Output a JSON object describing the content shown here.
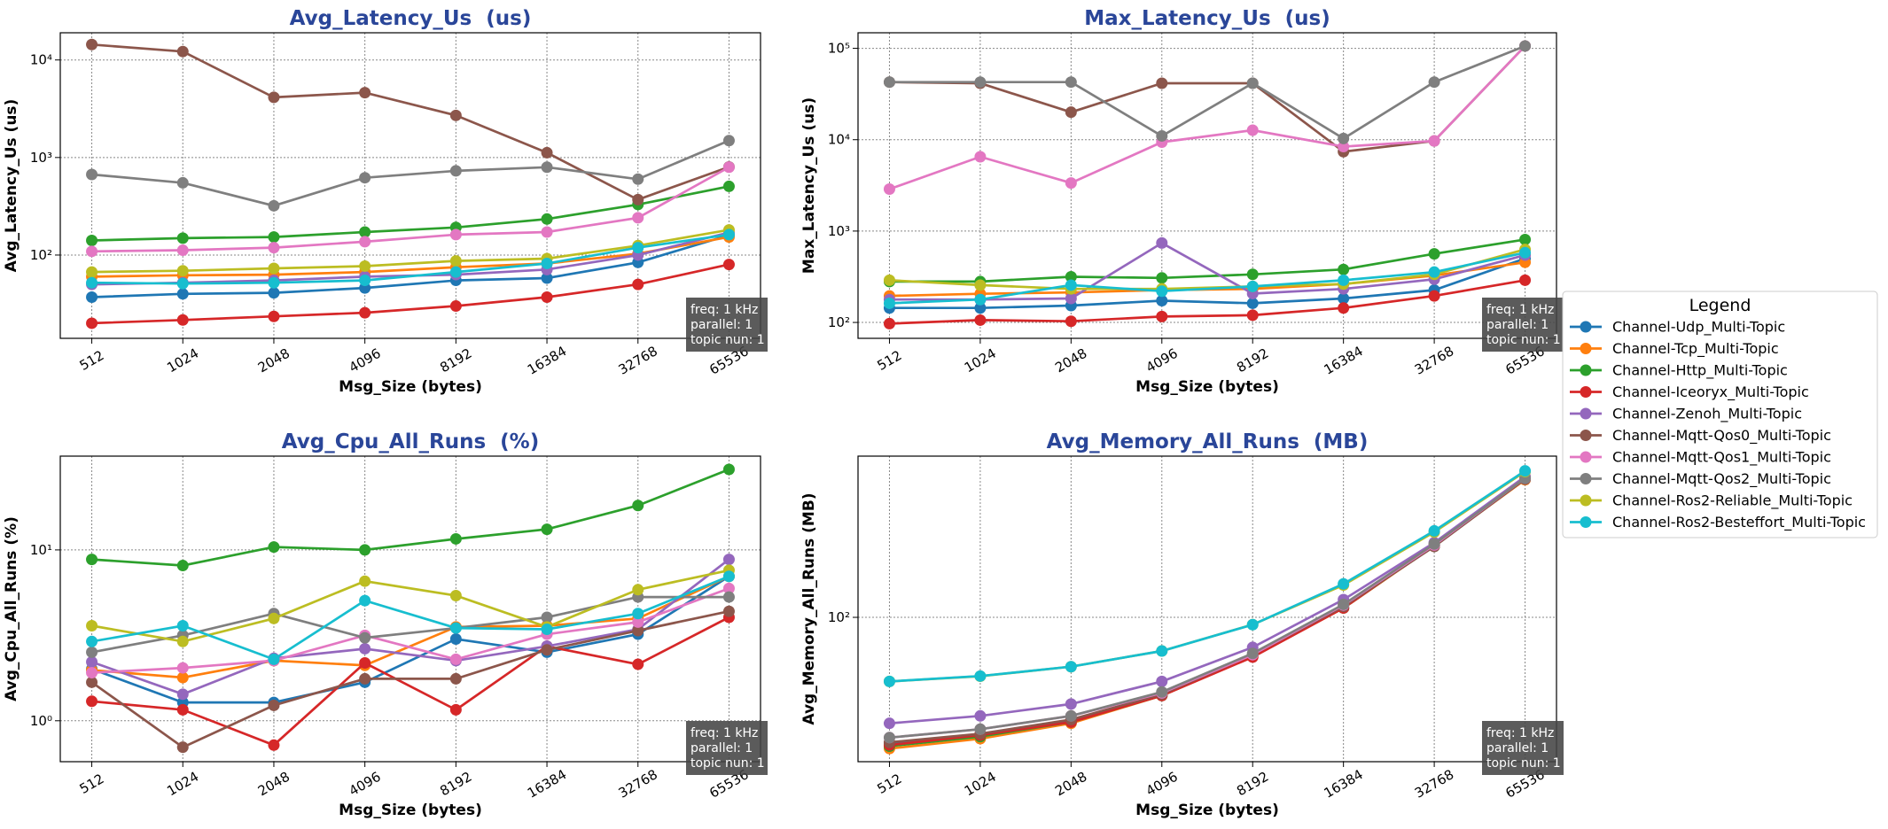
{
  "chart_data": [
    {
      "type": "line",
      "title": "Avg_Latency_Us  (us)",
      "xlabel": "Msg_Size (bytes)",
      "ylabel": "Avg_Latency_Us (us)",
      "log_y": true,
      "grid": true,
      "legend_title": "Legend",
      "categories": [
        "512",
        "1024",
        "2048",
        "4096",
        "8192",
        "16384",
        "32768",
        "65536"
      ],
      "ylim": [
        14,
        19000
      ],
      "yticks": [
        {
          "value": 100,
          "label": "10²"
        },
        {
          "value": 1000,
          "label": "10³"
        },
        {
          "value": 10000,
          "label": "10⁴"
        }
      ],
      "annotation": [
        "freq: 1 kHz",
        "parallel: 1",
        "topic nun: 1"
      ],
      "series": [
        {
          "name": "Channel-Udp_Multi-Topic",
          "color": "#1f77b4",
          "values": [
            37,
            40,
            41,
            46,
            55,
            58,
            84,
            160
          ]
        },
        {
          "name": "Channel-Tcp_Multi-Topic",
          "color": "#ff7f0e",
          "values": [
            60,
            62,
            63,
            67,
            75,
            82,
            103,
            153
          ]
        },
        {
          "name": "Channel-Http_Multi-Topic",
          "color": "#2ca02c",
          "values": [
            141,
            149,
            153,
            172,
            192,
            234,
            330,
            506
          ]
        },
        {
          "name": "Channel-Iceoryx_Multi-Topic",
          "color": "#d62728",
          "values": [
            20,
            21.6,
            23.5,
            25.6,
            30,
            37,
            50,
            80
          ]
        },
        {
          "name": "Channel-Zenoh_Multi-Topic",
          "color": "#9467bd",
          "values": [
            50,
            52,
            55,
            60,
            63,
            71,
            100,
            170
          ]
        },
        {
          "name": "Channel-Mqtt-Qos0_Multi-Topic",
          "color": "#8c564b",
          "values": [
            14400,
            12200,
            4140,
            4620,
            2700,
            1120,
            370,
            800
          ]
        },
        {
          "name": "Channel-Mqtt-Qos1_Multi-Topic",
          "color": "#e377c2",
          "values": [
            109,
            112,
            119,
            137,
            162,
            172,
            241,
            795
          ]
        },
        {
          "name": "Channel-Mqtt-Qos2_Multi-Topic",
          "color": "#7f7f7f",
          "values": [
            670,
            550,
            320,
            620,
            730,
            795,
            600,
            1490
          ]
        },
        {
          "name": "Channel-Ros2-Reliable_Multi-Topic",
          "color": "#bcbd22",
          "values": [
            67,
            69,
            73,
            77,
            87,
            92,
            125,
            181
          ]
        },
        {
          "name": "Channel-Ros2-Besteffort_Multi-Topic",
          "color": "#17becf",
          "values": [
            52,
            51,
            52,
            55,
            67,
            82,
            119,
            162
          ]
        }
      ]
    },
    {
      "type": "line",
      "title": "Max_Latency_Us  (us)",
      "xlabel": "Msg_Size (bytes)",
      "ylabel": "Max_Latency_Us (us)",
      "log_y": true,
      "grid": true,
      "categories": [
        "512",
        "1024",
        "2048",
        "4096",
        "8192",
        "16384",
        "32768",
        "65536"
      ],
      "ylim": [
        67,
        148000
      ],
      "yticks": [
        {
          "value": 100,
          "label": "10²"
        },
        {
          "value": 1000,
          "label": "10³"
        },
        {
          "value": 10000,
          "label": "10⁴"
        },
        {
          "value": 100000,
          "label": "10⁵"
        }
      ],
      "annotation": [
        "freq: 1 kHz",
        "parallel: 1",
        "topic nun: 1"
      ],
      "series": [
        {
          "name": "Channel-Udp_Multi-Topic",
          "color": "#1f77b4",
          "values": [
            144,
            144,
            153,
            173,
            162,
            183,
            226,
            500
          ]
        },
        {
          "name": "Channel-Tcp_Multi-Topic",
          "color": "#ff7f0e",
          "values": [
            195,
            206,
            213,
            226,
            233,
            263,
            326,
            455
          ]
        },
        {
          "name": "Channel-Http_Multi-Topic",
          "color": "#2ca02c",
          "values": [
            280,
            280,
            316,
            307,
            336,
            380,
            563,
            808
          ]
        },
        {
          "name": "Channel-Iceoryx_Multi-Topic",
          "color": "#d62728",
          "values": [
            97,
            106,
            103,
            116,
            120,
            144,
            195,
            290
          ]
        },
        {
          "name": "Channel-Zenoh_Multi-Topic",
          "color": "#9467bd",
          "values": [
            178,
            178,
            183,
            740,
            207,
            233,
            297,
            545
          ]
        },
        {
          "name": "Channel-Mqtt-Qos0_Multi-Topic",
          "color": "#8c564b",
          "values": [
            42700,
            41500,
            20000,
            41500,
            41500,
            7400,
            9700,
            106000
          ]
        },
        {
          "name": "Channel-Mqtt-Qos1_Multi-Topic",
          "color": "#e377c2",
          "values": [
            2880,
            6500,
            3360,
            9400,
            12700,
            8400,
            9700,
            106000
          ]
        },
        {
          "name": "Channel-Mqtt-Qos2_Multi-Topic",
          "color": "#7f7f7f",
          "values": [
            42700,
            42700,
            42700,
            11000,
            41500,
            10300,
            42700,
            106000
          ]
        },
        {
          "name": "Channel-Ros2-Reliable_Multi-Topic",
          "color": "#bcbd22",
          "values": [
            290,
            256,
            233,
            233,
            248,
            263,
            336,
            630
          ]
        },
        {
          "name": "Channel-Ros2-Besteffort_Multi-Topic",
          "color": "#17becf",
          "values": [
            162,
            178,
            256,
            220,
            248,
            290,
            356,
            580
          ]
        }
      ]
    },
    {
      "type": "line",
      "title": "Avg_Cpu_All_Runs  (%)",
      "xlabel": "Msg_Size (bytes)",
      "ylabel": "Avg_Cpu_All_Runs (%)",
      "log_y": true,
      "grid": true,
      "categories": [
        "512",
        "1024",
        "2048",
        "4096",
        "8192",
        "16384",
        "32768",
        "65536"
      ],
      "ylim": [
        0.576,
        35.4
      ],
      "yticks": [
        {
          "value": 1,
          "label": "10⁰"
        },
        {
          "value": 10,
          "label": "10¹"
        }
      ],
      "annotation": [
        "freq: 1 kHz",
        "parallel: 1",
        "topic nun: 1"
      ],
      "series": [
        {
          "name": "Channel-Udp_Multi-Topic",
          "color": "#1f77b4",
          "values": [
            2.01,
            1.28,
            1.28,
            1.68,
            3.01,
            2.52,
            3.21,
            7.0
          ]
        },
        {
          "name": "Channel-Tcp_Multi-Topic",
          "color": "#ff7f0e",
          "values": [
            1.98,
            1.79,
            2.25,
            2.11,
            3.54,
            3.6,
            3.97,
            7.0
          ]
        },
        {
          "name": "Channel-Http_Multi-Topic",
          "color": "#2ca02c",
          "values": [
            8.8,
            8.1,
            10.4,
            10.0,
            11.6,
            13.2,
            18.2,
            29.6
          ]
        },
        {
          "name": "Channel-Iceoryx_Multi-Topic",
          "color": "#d62728",
          "values": [
            1.3,
            1.16,
            0.72,
            2.18,
            1.16,
            2.73,
            2.14,
            4.03
          ]
        },
        {
          "name": "Channel-Zenoh_Multi-Topic",
          "color": "#9467bd",
          "values": [
            2.21,
            1.43,
            2.32,
            2.64,
            2.25,
            2.73,
            3.43,
            8.8
          ]
        },
        {
          "name": "Channel-Mqtt-Qos0_Multi-Topic",
          "color": "#8c564b",
          "values": [
            1.68,
            0.7,
            1.23,
            1.76,
            1.76,
            2.6,
            3.37,
            4.37
          ]
        },
        {
          "name": "Channel-Mqtt-Qos1_Multi-Topic",
          "color": "#e377c2",
          "values": [
            1.91,
            2.04,
            2.25,
            3.16,
            2.29,
            3.21,
            3.78,
            5.95
          ]
        },
        {
          "name": "Channel-Mqtt-Qos2_Multi-Topic",
          "color": "#7f7f7f",
          "values": [
            2.52,
            3.16,
            4.24,
            3.06,
            3.49,
            4.03,
            5.3,
            5.3
          ]
        },
        {
          "name": "Channel-Ros2-Reliable_Multi-Topic",
          "color": "#bcbd22",
          "values": [
            3.6,
            2.91,
            3.97,
            6.56,
            5.4,
            3.54,
            5.85,
            7.6
          ]
        },
        {
          "name": "Channel-Ros2-Besteffort_Multi-Topic",
          "color": "#17becf",
          "values": [
            2.91,
            3.6,
            2.29,
            5.05,
            3.49,
            3.43,
            4.24,
            7.0
          ]
        }
      ]
    },
    {
      "type": "line",
      "title": "Avg_Memory_All_Runs  (MB)",
      "xlabel": "Msg_Size (bytes)",
      "ylabel": "Avg_Memory_All_Runs (MB)",
      "log_y": true,
      "grid": true,
      "categories": [
        "512",
        "1024",
        "2048",
        "4096",
        "8192",
        "16384",
        "32768",
        "65536"
      ],
      "ylim": [
        17.4,
        705
      ],
      "yticks": [
        {
          "value": 100,
          "label": "10²"
        }
      ],
      "annotation": [
        "freq: 1 kHz",
        "parallel: 1",
        "topic nun: 1"
      ],
      "series": [
        {
          "name": "Channel-Udp_Multi-Topic",
          "color": "#1f77b4",
          "values": [
            21.6,
            24,
            28.6,
            39.4,
            62.8,
            112,
            240,
            540
          ]
        },
        {
          "name": "Channel-Tcp_Multi-Topic",
          "color": "#ff7f0e",
          "values": [
            20.4,
            23,
            27.7,
            38.8,
            62,
            112,
            238,
            530
          ]
        },
        {
          "name": "Channel-Http_Multi-Topic",
          "color": "#2ca02c",
          "values": [
            21,
            23.6,
            28.1,
            38.8,
            62.8,
            112,
            240,
            534
          ]
        },
        {
          "name": "Channel-Iceoryx_Multi-Topic",
          "color": "#d62728",
          "values": [
            21.3,
            24,
            28.1,
            38.8,
            61.8,
            112,
            240,
            534
          ]
        },
        {
          "name": "Channel-Zenoh_Multi-Topic",
          "color": "#9467bd",
          "values": [
            27.7,
            30.3,
            35,
            46,
            69.5,
            124,
            247,
            550
          ]
        },
        {
          "name": "Channel-Mqtt-Qos0_Multi-Topic",
          "color": "#8c564b",
          "values": [
            22,
            24.4,
            29,
            39.4,
            63.6,
            114,
            236,
            534
          ]
        },
        {
          "name": "Channel-Mqtt-Qos1_Multi-Topic",
          "color": "#e377c2",
          "values": [
            23.3,
            25.8,
            30.3,
            40,
            63.6,
            116,
            240,
            540
          ]
        },
        {
          "name": "Channel-Mqtt-Qos2_Multi-Topic",
          "color": "#7f7f7f",
          "values": [
            23.3,
            25.8,
            30.3,
            40.5,
            64.6,
            117,
            243,
            540
          ]
        },
        {
          "name": "Channel-Ros2-Reliable_Multi-Topic",
          "color": "#bcbd22",
          "values": [
            46,
            49,
            55,
            66.5,
            91.6,
            148,
            281,
            584
          ]
        },
        {
          "name": "Channel-Ros2-Besteffort_Multi-Topic",
          "color": "#17becf",
          "values": [
            46,
            49.1,
            55,
            66.5,
            91.5,
            150,
            285,
            590
          ]
        }
      ]
    }
  ]
}
